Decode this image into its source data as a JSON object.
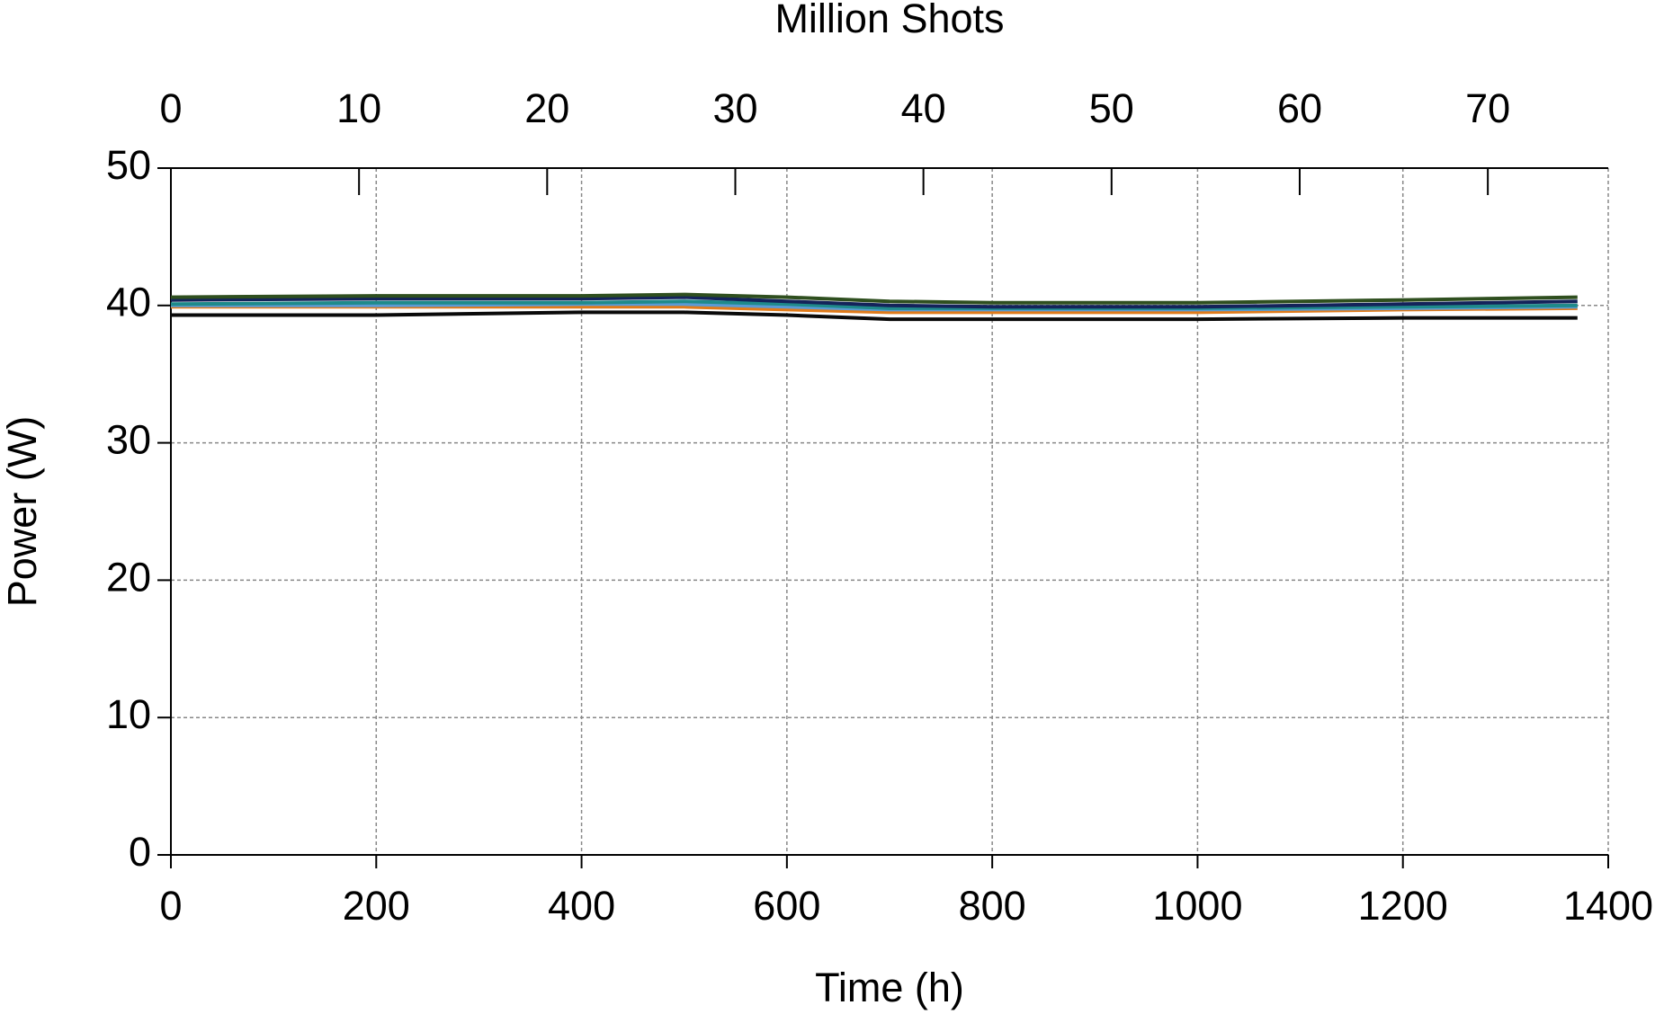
{
  "chart_data": {
    "type": "line",
    "x_label": "Time (h)",
    "y_label": "Power (W)",
    "x2_label": "Million Shots",
    "x": [
      0,
      200,
      400,
      500,
      600,
      700,
      800,
      1000,
      1200,
      1370
    ],
    "series": [
      {
        "color": "#0a0a0a",
        "values": [
          39.3,
          39.3,
          39.5,
          39.5,
          39.3,
          39.0,
          39.0,
          39.0,
          39.1,
          39.1
        ]
      },
      {
        "color": "#e07b1a",
        "values": [
          39.9,
          39.9,
          39.9,
          39.9,
          39.7,
          39.5,
          39.5,
          39.5,
          39.7,
          39.8
        ]
      },
      {
        "color": "#5b9bd5",
        "values": [
          40.0,
          40.0,
          40.1,
          40.1,
          39.9,
          39.7,
          39.7,
          39.7,
          39.8,
          39.9
        ]
      },
      {
        "color": "#1f8a8a",
        "values": [
          40.1,
          40.2,
          40.2,
          40.3,
          40.1,
          39.8,
          39.8,
          39.8,
          39.9,
          40.0
        ]
      },
      {
        "color": "#14235a",
        "values": [
          40.4,
          40.5,
          40.5,
          40.6,
          40.3,
          40.0,
          39.9,
          39.9,
          40.1,
          40.3
        ]
      },
      {
        "color": "#2f4f1f",
        "values": [
          40.6,
          40.7,
          40.7,
          40.8,
          40.6,
          40.3,
          40.2,
          40.2,
          40.4,
          40.6
        ]
      }
    ],
    "xlim": [
      0,
      1400
    ],
    "xticks": [
      0,
      200,
      400,
      600,
      800,
      1000,
      1200,
      1400
    ],
    "x2lim": [
      0,
      76.4
    ],
    "x2ticks": [
      0,
      10,
      20,
      30,
      40,
      50,
      60,
      70
    ],
    "ylim": [
      0,
      50
    ],
    "yticks": [
      0,
      10,
      20,
      30,
      40,
      50
    ],
    "grid": true
  }
}
